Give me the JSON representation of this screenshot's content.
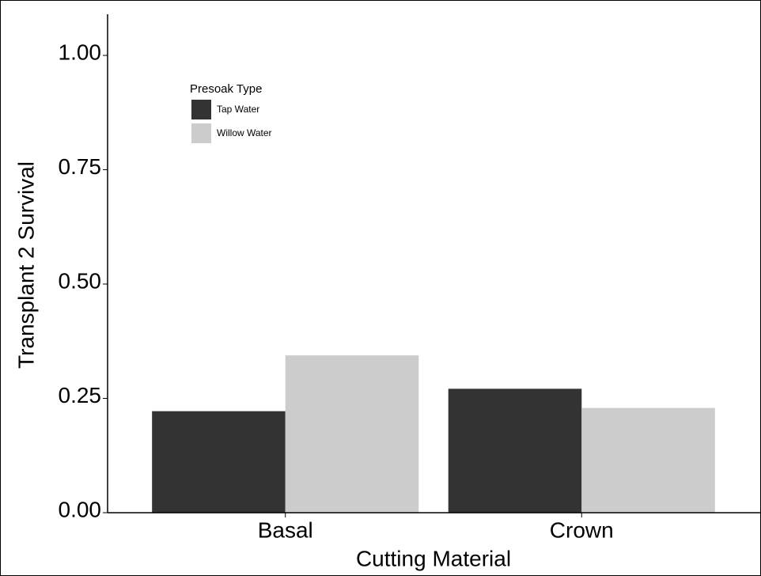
{
  "chart_data": {
    "type": "bar",
    "x_label": "Cutting Material",
    "y_label": "Transplant 2 Survival",
    "categories": [
      "Basal",
      "Crown"
    ],
    "legend_title": "Presoak Type",
    "series": [
      {
        "name": "Tap Water",
        "color": "#333333",
        "values": [
          0.222,
          0.271
        ]
      },
      {
        "name": "Willow Water",
        "color": "#cccccc",
        "values": [
          0.344,
          0.229
        ]
      }
    ],
    "ylim": [
      0,
      1.09
    ],
    "yticks": [
      {
        "value": 0,
        "label": "0.00"
      },
      {
        "value": 0.25,
        "label": "0.25"
      },
      {
        "value": 0.5,
        "label": "0.50"
      },
      {
        "value": 0.75,
        "label": "0.75"
      },
      {
        "value": 1,
        "label": "1.00"
      }
    ],
    "legend_position": "top-left"
  }
}
